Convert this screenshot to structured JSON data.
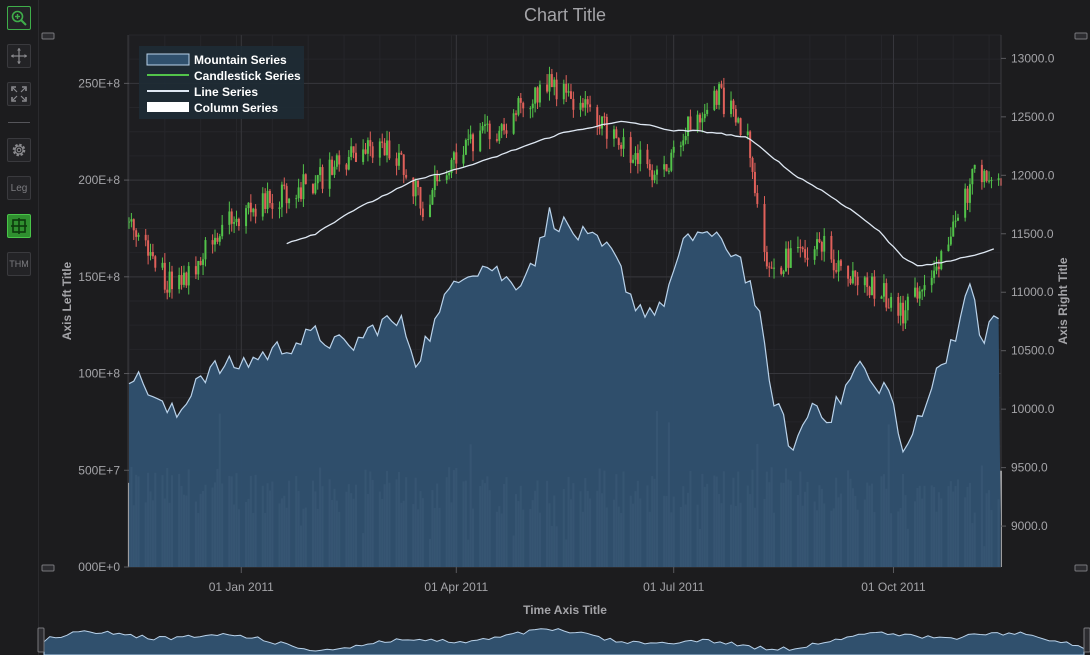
{
  "toolbar": {
    "tools": [
      {
        "name": "zoom-tool",
        "icon": "zoom-in-icon",
        "label": ""
      },
      {
        "name": "pan-tool",
        "icon": "move-icon",
        "label": ""
      },
      {
        "name": "zoom-extents-tool",
        "icon": "fit-extents-icon",
        "label": ""
      },
      {
        "name": "settings-tool",
        "icon": "gear-icon",
        "label": ""
      },
      {
        "name": "legend-tool",
        "icon": "legend-icon",
        "label": "Leg"
      },
      {
        "name": "crosshair-tool",
        "icon": "crosshair-icon",
        "label": ""
      },
      {
        "name": "theme-tool",
        "icon": "theme-icon",
        "label": "THM"
      }
    ]
  },
  "colors": {
    "background": "#1c1c1e",
    "plot_background": "#1e1e21",
    "mountain_fill": "#30506d",
    "mountain_stroke": "#b9d2ea",
    "line": "#dfe8f3",
    "column": "#ffffff",
    "candle_up": "#52c34a",
    "candle_down": "#e0605a",
    "legend_bg": "#1f2b35",
    "text": "#a4a4a8",
    "accent_green": "#3fae4a"
  },
  "chart_data": {
    "type": "line",
    "title": "Chart Title",
    "xlabel": "Time Axis Title",
    "ylabel_left": "Axis Left Title",
    "ylabel_right": "Axis Right Title",
    "x_ticks": [
      "01 Jan 2011",
      "01 Apr 2011",
      "01 Jul 2011",
      "01 Oct 2011"
    ],
    "left_ticks": [
      "000E+0",
      "500E+7",
      "100E+8",
      "150E+8",
      "200E+8",
      "250E+8"
    ],
    "right_ticks": [
      "9000.0",
      "9500.0",
      "10000.0",
      "10500.0",
      "11000.0",
      "11500.0",
      "12000.0",
      "12500.0",
      "13000.0"
    ],
    "x_range": [
      "2010-11-15",
      "2011-11-15"
    ],
    "left_range": [
      0,
      27500000000
    ],
    "right_range": [
      8650,
      13200
    ],
    "legend": {
      "placement": "top-left",
      "entries": [
        "Mountain Series",
        "Candlestick Series",
        "Line Series",
        "Column Series"
      ]
    },
    "grid": true,
    "series": [
      {
        "name": "Mountain Series",
        "type": "mountain",
        "axis": "left",
        "points": [
          [
            "2010-11-15",
            10000000000
          ],
          [
            "2010-11-22",
            9400000000
          ],
          [
            "2010-11-29",
            8200000000
          ],
          [
            "2010-12-06",
            7800000000
          ],
          [
            "2010-12-13",
            9800000000
          ],
          [
            "2010-12-20",
            10200000000
          ],
          [
            "2011-01-01",
            10500000000
          ],
          [
            "2011-01-15",
            11200000000
          ],
          [
            "2011-02-01",
            12000000000
          ],
          [
            "2011-02-15",
            11300000000
          ],
          [
            "2011-03-01",
            12700000000
          ],
          [
            "2011-03-10",
            12500000000
          ],
          [
            "2011-03-15",
            10700000000
          ],
          [
            "2011-03-25",
            13000000000
          ],
          [
            "2011-04-01",
            15200000000
          ],
          [
            "2011-04-15",
            15600000000
          ],
          [
            "2011-04-25",
            14500000000
          ],
          [
            "2011-05-05",
            16200000000
          ],
          [
            "2011-05-10",
            18200000000
          ],
          [
            "2011-05-20",
            17300000000
          ],
          [
            "2011-05-25",
            17000000000
          ],
          [
            "2011-06-05",
            16200000000
          ],
          [
            "2011-06-10",
            15000000000
          ],
          [
            "2011-06-15",
            13500000000
          ],
          [
            "2011-06-25",
            13200000000
          ],
          [
            "2011-07-05",
            16500000000
          ],
          [
            "2011-07-12",
            17500000000
          ],
          [
            "2011-07-20",
            16700000000
          ],
          [
            "2011-07-28",
            16200000000
          ],
          [
            "2011-08-05",
            13500000000
          ],
          [
            "2011-08-10",
            9500000000
          ],
          [
            "2011-08-20",
            6000000000
          ],
          [
            "2011-08-28",
            8500000000
          ],
          [
            "2011-09-05",
            7800000000
          ],
          [
            "2011-09-12",
            9500000000
          ],
          [
            "2011-09-18",
            10700000000
          ],
          [
            "2011-09-22",
            9000000000
          ],
          [
            "2011-09-26",
            9600000000
          ],
          [
            "2011-10-01",
            8500000000
          ],
          [
            "2011-10-05",
            5500000000
          ],
          [
            "2011-10-12",
            8000000000
          ],
          [
            "2011-10-20",
            10200000000
          ],
          [
            "2011-10-28",
            12500000000
          ],
          [
            "2011-11-03",
            14600000000
          ],
          [
            "2011-11-07",
            11500000000
          ],
          [
            "2011-11-12",
            12800000000
          ]
        ]
      },
      {
        "name": "Line Series",
        "type": "line",
        "axis": "right",
        "points": [
          [
            "2011-01-20",
            11420
          ],
          [
            "2011-02-01",
            11500
          ],
          [
            "2011-02-15",
            11680
          ],
          [
            "2011-03-01",
            11820
          ],
          [
            "2011-03-15",
            11960
          ],
          [
            "2011-04-01",
            12050
          ],
          [
            "2011-04-15",
            12140
          ],
          [
            "2011-05-01",
            12260
          ],
          [
            "2011-05-15",
            12360
          ],
          [
            "2011-06-01",
            12430
          ],
          [
            "2011-06-10",
            12460
          ],
          [
            "2011-06-20",
            12430
          ],
          [
            "2011-07-01",
            12380
          ],
          [
            "2011-07-10",
            12380
          ],
          [
            "2011-07-20",
            12360
          ],
          [
            "2011-08-01",
            12320
          ],
          [
            "2011-08-10",
            12180
          ],
          [
            "2011-08-20",
            12010
          ],
          [
            "2011-09-01",
            11870
          ],
          [
            "2011-09-15",
            11680
          ],
          [
            "2011-09-25",
            11520
          ],
          [
            "2011-10-05",
            11300
          ],
          [
            "2011-10-12",
            11220
          ],
          [
            "2011-10-20",
            11250
          ],
          [
            "2011-11-01",
            11300
          ],
          [
            "2011-11-12",
            11370
          ]
        ]
      },
      {
        "name": "Candlestick Series",
        "type": "candlestick",
        "axis": "right",
        "close_path": [
          [
            "2010-11-15",
            11600
          ],
          [
            "2010-12-01",
            11100
          ],
          [
            "2010-12-10",
            11150
          ],
          [
            "2010-12-20",
            11500
          ],
          [
            "2011-01-01",
            11650
          ],
          [
            "2011-01-20",
            11850
          ],
          [
            "2011-02-01",
            11950
          ],
          [
            "2011-02-15",
            12150
          ],
          [
            "2011-03-01",
            12250
          ],
          [
            "2011-03-10",
            12100
          ],
          [
            "2011-03-18",
            11750
          ],
          [
            "2011-04-01",
            12200
          ],
          [
            "2011-04-20",
            12400
          ],
          [
            "2011-05-01",
            12650
          ],
          [
            "2011-05-10",
            12800
          ],
          [
            "2011-06-01",
            12450
          ],
          [
            "2011-06-15",
            12150
          ],
          [
            "2011-06-25",
            11950
          ],
          [
            "2011-07-05",
            12350
          ],
          [
            "2011-07-20",
            12700
          ],
          [
            "2011-08-01",
            12300
          ],
          [
            "2011-08-10",
            11200
          ],
          [
            "2011-08-20",
            11300
          ],
          [
            "2011-09-01",
            11400
          ],
          [
            "2011-09-15",
            11100
          ],
          [
            "2011-10-01",
            10950
          ],
          [
            "2011-10-05",
            10800
          ],
          [
            "2011-10-20",
            11300
          ],
          [
            "2011-10-28",
            11600
          ],
          [
            "2011-11-05",
            12100
          ],
          [
            "2011-11-12",
            11900
          ]
        ]
      },
      {
        "name": "Column Series",
        "type": "column",
        "axis": "left",
        "typical_value": 3700000000
      }
    ]
  }
}
